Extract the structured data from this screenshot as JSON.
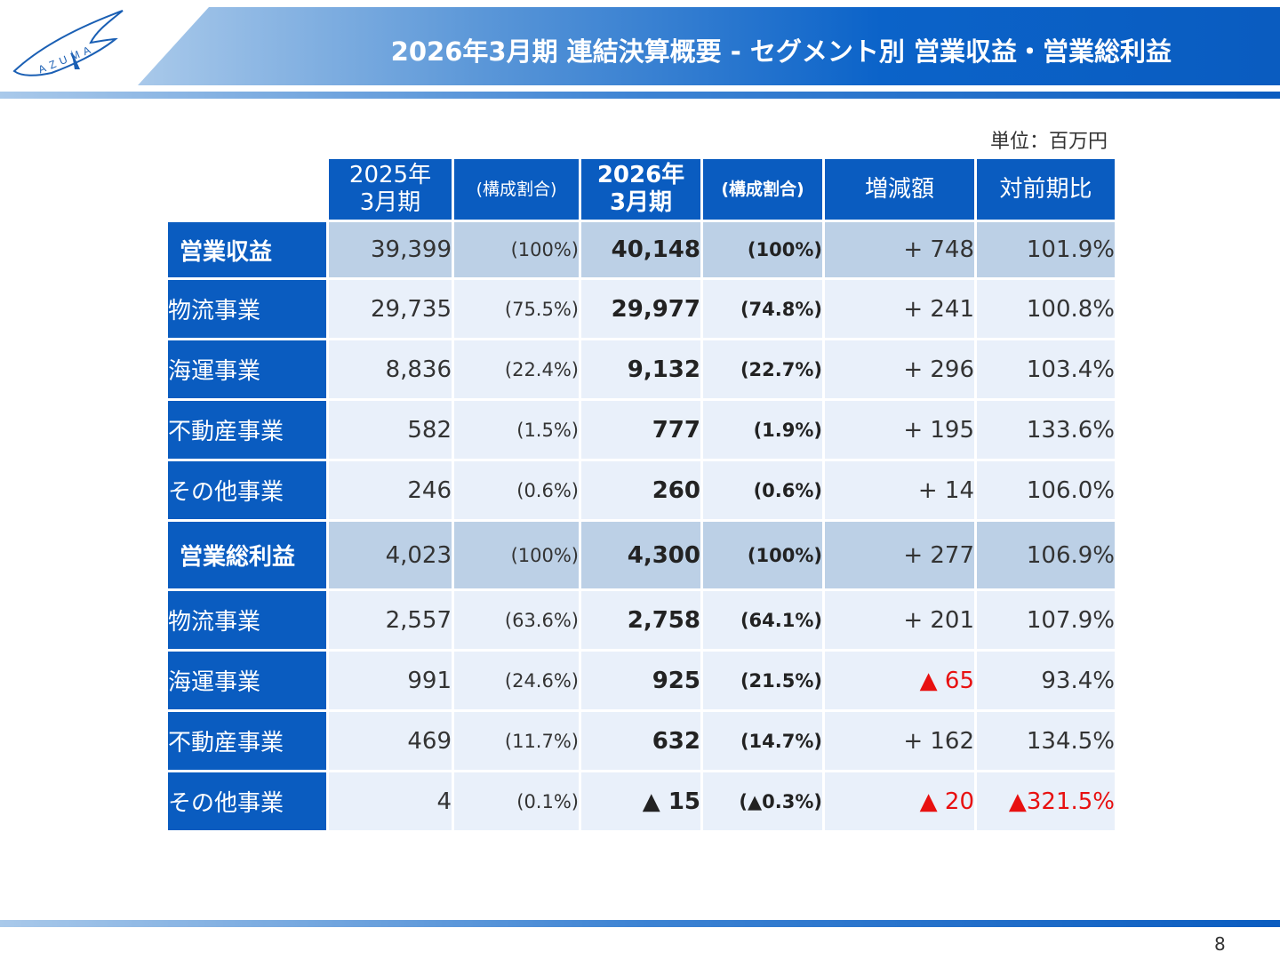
{
  "header": {
    "title": "2026年3月期 連結決算概要 - セグメント別 営業収益・営業総利益",
    "logo_text": "AZUMA"
  },
  "unit_label": "単位：百万円",
  "page_number": "8",
  "colors": {
    "brand_blue": "#0a5cc0",
    "total_row_bg": "#bcd0e6",
    "sub_row_bg": "#e9f0fa",
    "negative": "#e81010"
  },
  "table": {
    "columns": {
      "fy2025_line1": "2025年",
      "fy2025_line2": "3月期",
      "share_prev": "(構成割合)",
      "fy2026_line1": "2026年",
      "fy2026_line2": "3月期",
      "share_curr": "(構成割合)",
      "change": "増減額",
      "yoy": "対前期比"
    },
    "rows": [
      {
        "label": "営業収益",
        "prev": "39,399",
        "prev_share": "(100%)",
        "curr": "40,148",
        "curr_share": "(100%)",
        "change": "+ 748",
        "yoy": "101.9%"
      },
      {
        "label": "物流事業",
        "prev": "29,735",
        "prev_share": "(75.5%)",
        "curr": "29,977",
        "curr_share": "(74.8%)",
        "change": "+ 241",
        "yoy": "100.8%"
      },
      {
        "label": "海運事業",
        "prev": "8,836",
        "prev_share": "(22.4%)",
        "curr": "9,132",
        "curr_share": "(22.7%)",
        "change": "+ 296",
        "yoy": "103.4%"
      },
      {
        "label": "不動産事業",
        "prev": "582",
        "prev_share": "(1.5%)",
        "curr": "777",
        "curr_share": "(1.9%)",
        "change": "+ 195",
        "yoy": "133.6%"
      },
      {
        "label": "その他事業",
        "prev": "246",
        "prev_share": "(0.6%)",
        "curr": "260",
        "curr_share": "(0.6%)",
        "change": "+ 14",
        "yoy": "106.0%"
      },
      {
        "label": "営業総利益",
        "prev": "4,023",
        "prev_share": "(100%)",
        "curr": "4,300",
        "curr_share": "(100%)",
        "change": "+ 277",
        "yoy": "106.9%"
      },
      {
        "label": "物流事業",
        "prev": "2,557",
        "prev_share": "(63.6%)",
        "curr": "2,758",
        "curr_share": "(64.1%)",
        "change": "+ 201",
        "yoy": "107.9%"
      },
      {
        "label": "海運事業",
        "prev": "991",
        "prev_share": "(24.6%)",
        "curr": "925",
        "curr_share": "(21.5%)",
        "change": "▲ 65",
        "yoy": "93.4%"
      },
      {
        "label": "不動産事業",
        "prev": "469",
        "prev_share": "(11.7%)",
        "curr": "632",
        "curr_share": "(14.7%)",
        "change": "+ 162",
        "yoy": "134.5%"
      },
      {
        "label": "その他事業",
        "prev": "4",
        "prev_share": "(0.1%)",
        "curr": "▲ 15",
        "curr_share": "(▲0.3%)",
        "change": "▲ 20",
        "yoy": "▲321.5%"
      }
    ]
  }
}
